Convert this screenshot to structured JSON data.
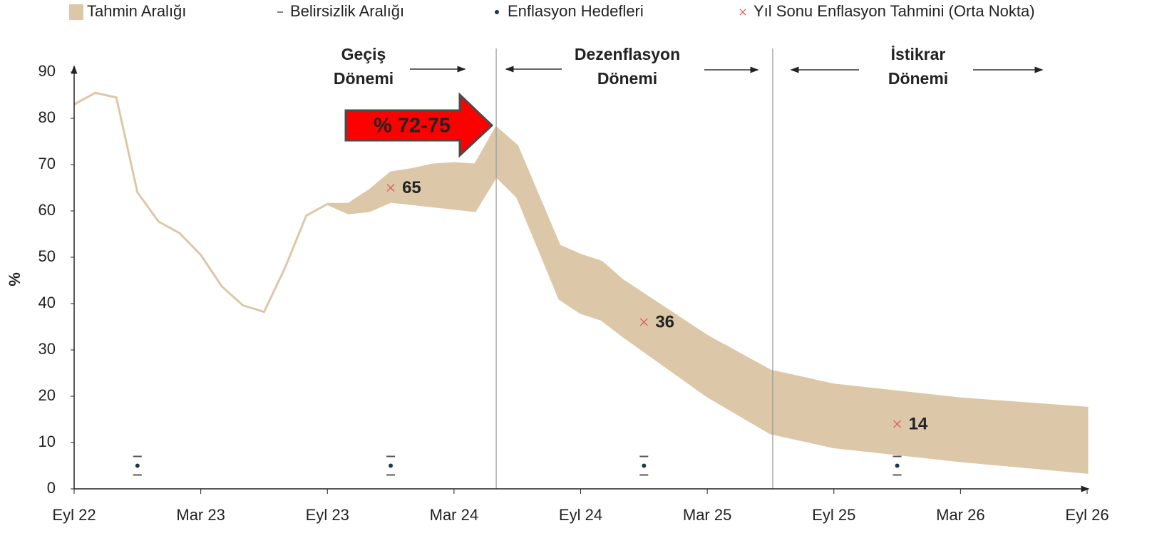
{
  "chart_data": {
    "type": "band",
    "ylabel": "%",
    "xlim": [
      0,
      48
    ],
    "ylim": [
      0,
      90
    ],
    "yticks": [
      0,
      10,
      20,
      30,
      40,
      50,
      60,
      70,
      80,
      90
    ],
    "xticks": [
      {
        "value": 0,
        "label": "Eyl 22"
      },
      {
        "value": 6,
        "label": "Mar 23"
      },
      {
        "value": 12,
        "label": "Eyl 23"
      },
      {
        "value": 18,
        "label": "Mar 24"
      },
      {
        "value": 24,
        "label": "Eyl 24"
      },
      {
        "value": 30,
        "label": "Mar 25"
      },
      {
        "value": 36,
        "label": "Eyl 25"
      },
      {
        "value": 42,
        "label": "Mar 26"
      },
      {
        "value": 48,
        "label": "Eyl 26"
      }
    ],
    "band": {
      "name": "Tahmin Aralığı",
      "color": "#dcc8a8",
      "x": [
        0,
        1,
        2,
        3,
        4,
        5,
        6,
        7,
        8,
        9,
        10,
        11,
        12,
        13,
        14,
        15,
        16,
        17,
        18,
        19,
        20,
        21,
        23,
        24,
        25,
        26,
        30,
        33,
        36,
        42,
        48
      ],
      "low": [
        83,
        85.5,
        84.5,
        64,
        57.7,
        55.2,
        50.5,
        43.7,
        39.6,
        38.2,
        47.8,
        59,
        61.5,
        59.5,
        60,
        62,
        61.5,
        61,
        60.5,
        60,
        67.5,
        63,
        41,
        38,
        36.5,
        33,
        20,
        12,
        9,
        6,
        3.5
      ],
      "high": [
        83,
        85.5,
        84.5,
        64,
        57.7,
        55.2,
        50.5,
        43.7,
        39.6,
        38.2,
        47.8,
        59,
        61.5,
        61.5,
        64.5,
        68.3,
        69,
        70,
        70.3,
        70,
        78,
        74,
        52.5,
        50.5,
        49,
        45,
        33,
        25.5,
        22.5,
        19.5,
        17.5
      ]
    },
    "uncertainty": {
      "name": "Belirsizlik Aralığı",
      "color": "#555555",
      "x": [
        3,
        15,
        27,
        39
      ],
      "low": [
        3,
        3,
        3,
        3
      ],
      "high": [
        7,
        7,
        7,
        7
      ]
    },
    "targets": {
      "name": "Enflasyon Hedefleri",
      "color": "#1f3552",
      "x": [
        3,
        15,
        27,
        39
      ],
      "values": [
        5,
        5,
        5,
        5
      ]
    },
    "forecasts": {
      "name": "Yıl Sonu Enflasyon Tahmini (Orta Nokta)",
      "color": "#e06060",
      "x": [
        15,
        27,
        39
      ],
      "values": [
        65,
        36,
        14
      ]
    },
    "phase_dividers": [
      20,
      33.1
    ],
    "phases": [
      {
        "lines": [
          "Geçiş",
          "Dönemi"
        ]
      },
      {
        "lines": [
          "Dezenflasyon",
          "Dönemi"
        ]
      },
      {
        "lines": [
          "İstikrar",
          "Dönemi"
        ]
      }
    ],
    "callout": "% 72-75"
  }
}
